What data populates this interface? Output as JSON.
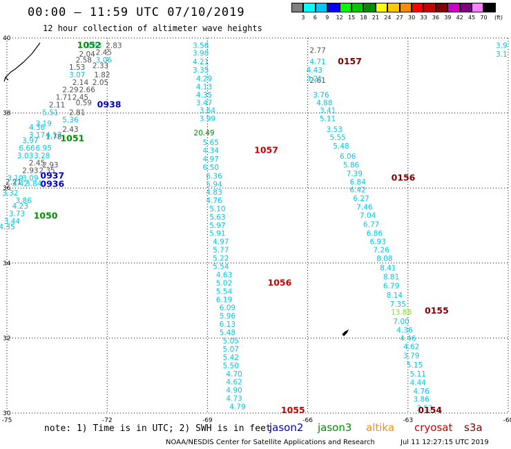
{
  "header": {
    "title": "00:00 – 11:59 UTC 07/10/2019",
    "subtitle": "12 hour collection of altimeter wave heights"
  },
  "footer": {
    "note": "note: 1) Time is in UTC; 2) SWH is in feet",
    "credit": "NOAA/NESDIS Center for Satellite Applications and Research",
    "timestamp": "Jul 11 12:27:15 UTC 2019"
  },
  "colorbar": {
    "unit": "(ft)",
    "colors": [
      "#808080",
      "#00ffff",
      "#00c8ff",
      "#0000ff",
      "#00ff00",
      "#00c800",
      "#008c00",
      "#ffff00",
      "#ffc800",
      "#ff8c00",
      "#ff0000",
      "#c80000",
      "#800000",
      "#c800c8",
      "#800080",
      "#ff80ff",
      "#000000"
    ],
    "labels": [
      "3",
      "6",
      "9",
      "12",
      "15",
      "18",
      "21",
      "24",
      "27",
      "30",
      "33",
      "36",
      "39",
      "42",
      "45",
      "70"
    ]
  },
  "legend": [
    {
      "name": "jason2",
      "color": "#0000c8"
    },
    {
      "name": "jason3",
      "color": "#008c00"
    },
    {
      "name": "altika",
      "color": "#ff8c00"
    },
    {
      "name": "cryosat",
      "color": "#c80000"
    },
    {
      "name": "s3a",
      "color": "#800000"
    }
  ],
  "chart_data": {
    "type": "scatter",
    "title": "00:00 – 11:59 UTC 07/10/2019",
    "subtitle": "12 hour collection of altimeter wave heights",
    "xlim": [
      -75,
      -60
    ],
    "ylim": [
      30,
      40
    ],
    "x_ticks": [
      "-75",
      "-72",
      "-69",
      "-66",
      "-63",
      "-60"
    ],
    "y_ticks": [
      "30",
      "32",
      "34",
      "36",
      "38",
      "40"
    ],
    "grid": true,
    "pass_labels": [
      {
        "text": "1052",
        "lon": -72.9,
        "lat": 39.73,
        "color": "#008c00"
      },
      {
        "text": "0938",
        "lon": -72.3,
        "lat": 38.15,
        "color": "#0000c8"
      },
      {
        "text": "1051",
        "lon": -73.4,
        "lat": 37.25,
        "color": "#008c00"
      },
      {
        "text": "0937",
        "lon": -74.0,
        "lat": 36.25,
        "color": "#0000c8"
      },
      {
        "text": "0936",
        "lon": -74.0,
        "lat": 36.03,
        "color": "#0000c8"
      },
      {
        "text": "1050",
        "lon": -74.2,
        "lat": 35.18,
        "color": "#008c00"
      },
      {
        "text": "1057",
        "lon": -67.6,
        "lat": 36.93,
        "color": "#c80000"
      },
      {
        "text": "1056",
        "lon": -67.2,
        "lat": 33.4,
        "color": "#c80000"
      },
      {
        "text": "1055",
        "lon": -66.8,
        "lat": 30.0,
        "color": "#c80000"
      },
      {
        "text": "0157",
        "lon": -65.1,
        "lat": 39.3,
        "color": "#800000"
      },
      {
        "text": "0156",
        "lon": -63.5,
        "lat": 36.2,
        "color": "#800000"
      },
      {
        "text": "0155",
        "lon": -62.5,
        "lat": 32.65,
        "color": "#800000"
      },
      {
        "text": "0154",
        "lon": -62.7,
        "lat": 30.0,
        "color": "#800000"
      }
    ],
    "series": [
      {
        "name": "grey track",
        "color": "#505050",
        "points": [
          {
            "lon": -71.8,
            "lat": 39.73,
            "v": "2.83"
          },
          {
            "lon": -72.1,
            "lat": 39.55,
            "v": "2.45"
          },
          {
            "lon": -72.6,
            "lat": 39.5,
            "v": "2.04"
          },
          {
            "lon": -72.7,
            "lat": 39.35,
            "v": "2.58"
          },
          {
            "lon": -72.2,
            "lat": 39.2,
            "v": "2.33"
          },
          {
            "lon": -72.9,
            "lat": 39.15,
            "v": "1.53"
          },
          {
            "lon": -72.15,
            "lat": 38.95,
            "v": "1.82"
          },
          {
            "lon": -72.8,
            "lat": 38.75,
            "v": "2.14"
          },
          {
            "lon": -72.2,
            "lat": 38.75,
            "v": "2.05"
          },
          {
            "lon": -73.1,
            "lat": 38.55,
            "v": "2.29"
          },
          {
            "lon": -72.6,
            "lat": 38.55,
            "v": "2.66"
          },
          {
            "lon": -73.3,
            "lat": 38.35,
            "v": "1.71"
          },
          {
            "lon": -72.8,
            "lat": 38.35,
            "v": "2.45"
          },
          {
            "lon": -73.5,
            "lat": 38.15,
            "v": "2.11"
          },
          {
            "lon": -72.7,
            "lat": 38.2,
            "v": "0.59"
          },
          {
            "lon": -72.9,
            "lat": 37.95,
            "v": "2.81"
          },
          {
            "lon": -73.1,
            "lat": 37.5,
            "v": "2.43"
          },
          {
            "lon": -73.6,
            "lat": 37.3,
            "v": "1.78"
          },
          {
            "lon": -74.1,
            "lat": 36.6,
            "v": "2.45"
          },
          {
            "lon": -73.7,
            "lat": 36.55,
            "v": "2.93"
          },
          {
            "lon": -74.3,
            "lat": 36.4,
            "v": "2.93"
          },
          {
            "lon": -73.8,
            "lat": 36.4,
            "v": "2.35"
          },
          {
            "lon": -74.8,
            "lat": 36.1,
            "v": "2.21"
          },
          {
            "lon": -65.7,
            "lat": 39.6,
            "v": "2.77"
          },
          {
            "lon": -65.7,
            "lat": 38.8,
            "v": "2.61"
          }
        ]
      },
      {
        "name": "cyan track",
        "color": "#00c8e6",
        "points": [
          {
            "lon": -72.4,
            "lat": 39.73,
            "v": "3.83"
          },
          {
            "lon": -72.1,
            "lat": 39.35,
            "v": "3.06"
          },
          {
            "lon": -72.9,
            "lat": 38.95,
            "v": "3.07"
          },
          {
            "lon": -73.7,
            "lat": 37.95,
            "v": "5.51"
          },
          {
            "lon": -73.1,
            "lat": 37.75,
            "v": "5.36"
          },
          {
            "lon": -73.9,
            "lat": 37.65,
            "v": "3.19"
          },
          {
            "lon": -74.1,
            "lat": 37.55,
            "v": "4.36"
          },
          {
            "lon": -74.1,
            "lat": 37.35,
            "v": "3.17"
          },
          {
            "lon": -73.6,
            "lat": 37.35,
            "v": "4.17"
          },
          {
            "lon": -74.3,
            "lat": 37.2,
            "v": "3.97"
          },
          {
            "lon": -74.4,
            "lat": 37.0,
            "v": "6.66"
          },
          {
            "lon": -73.9,
            "lat": 37.0,
            "v": "6.95"
          },
          {
            "lon": -74.45,
            "lat": 36.8,
            "v": "3.03"
          },
          {
            "lon": -73.95,
            "lat": 36.8,
            "v": "3.28"
          },
          {
            "lon": -74.3,
            "lat": 36.2,
            "v": "3.09"
          },
          {
            "lon": -74.75,
            "lat": 36.2,
            "v": "3.19"
          },
          {
            "lon": -74.6,
            "lat": 36.05,
            "v": "3.42"
          },
          {
            "lon": -74.2,
            "lat": 36.05,
            "v": "3.84"
          },
          {
            "lon": -74.9,
            "lat": 35.8,
            "v": "3.32"
          },
          {
            "lon": -74.5,
            "lat": 35.6,
            "v": "3.86"
          },
          {
            "lon": -74.6,
            "lat": 35.45,
            "v": "4.23"
          },
          {
            "lon": -74.7,
            "lat": 35.25,
            "v": "3.73"
          },
          {
            "lon": -74.85,
            "lat": 35.05,
            "v": "3.44"
          },
          {
            "lon": -75.0,
            "lat": 34.9,
            "v": "4.35"
          },
          {
            "lon": -69.2,
            "lat": 39.73,
            "v": "3.56"
          },
          {
            "lon": -69.2,
            "lat": 39.53,
            "v": "3.98"
          },
          {
            "lon": -69.2,
            "lat": 39.3,
            "v": "4.21"
          },
          {
            "lon": -69.2,
            "lat": 39.08,
            "v": "3.35"
          },
          {
            "lon": -69.1,
            "lat": 38.85,
            "v": "4.29"
          },
          {
            "lon": -69.1,
            "lat": 38.63,
            "v": "4.13"
          },
          {
            "lon": -69.1,
            "lat": 38.42,
            "v": "4.35"
          },
          {
            "lon": -69.1,
            "lat": 38.2,
            "v": "3.47"
          },
          {
            "lon": -69.0,
            "lat": 38.0,
            "v": "3.64"
          },
          {
            "lon": -69.0,
            "lat": 37.78,
            "v": "3.99"
          },
          {
            "lon": -68.9,
            "lat": 37.15,
            "v": "5.65"
          },
          {
            "lon": -68.9,
            "lat": 36.93,
            "v": "4.34"
          },
          {
            "lon": -68.9,
            "lat": 36.7,
            "v": "4.97"
          },
          {
            "lon": -68.9,
            "lat": 36.48,
            "v": "6.50"
          },
          {
            "lon": -68.8,
            "lat": 36.25,
            "v": "6.36"
          },
          {
            "lon": -68.8,
            "lat": 36.03,
            "v": "5.94"
          },
          {
            "lon": -68.8,
            "lat": 35.82,
            "v": "4.83"
          },
          {
            "lon": -68.8,
            "lat": 35.6,
            "v": "4.76"
          },
          {
            "lon": -68.7,
            "lat": 35.38,
            "v": "5.10"
          },
          {
            "lon": -68.7,
            "lat": 35.16,
            "v": "5.63"
          },
          {
            "lon": -68.7,
            "lat": 34.94,
            "v": "5.97"
          },
          {
            "lon": -68.7,
            "lat": 34.72,
            "v": "5.91"
          },
          {
            "lon": -68.6,
            "lat": 34.5,
            "v": "4.97"
          },
          {
            "lon": -68.6,
            "lat": 34.28,
            "v": "5.77"
          },
          {
            "lon": -68.6,
            "lat": 34.06,
            "v": "5.22"
          },
          {
            "lon": -68.6,
            "lat": 33.84,
            "v": "5.54"
          },
          {
            "lon": -68.5,
            "lat": 33.62,
            "v": "4.63"
          },
          {
            "lon": -68.5,
            "lat": 33.4,
            "v": "5.02"
          },
          {
            "lon": -68.5,
            "lat": 33.18,
            "v": "5.54"
          },
          {
            "lon": -68.5,
            "lat": 32.96,
            "v": "6.19"
          },
          {
            "lon": -68.4,
            "lat": 32.74,
            "v": "6.09"
          },
          {
            "lon": -68.4,
            "lat": 32.52,
            "v": "5.96"
          },
          {
            "lon": -68.4,
            "lat": 32.3,
            "v": "6.13"
          },
          {
            "lon": -68.4,
            "lat": 32.08,
            "v": "5.48"
          },
          {
            "lon": -68.3,
            "lat": 31.86,
            "v": "5.05"
          },
          {
            "lon": -68.3,
            "lat": 31.64,
            "v": "5.07"
          },
          {
            "lon": -68.3,
            "lat": 31.42,
            "v": "5.42"
          },
          {
            "lon": -68.3,
            "lat": 31.2,
            "v": "5.50"
          },
          {
            "lon": -68.2,
            "lat": 30.98,
            "v": "4.70"
          },
          {
            "lon": -68.2,
            "lat": 30.76,
            "v": "4.62"
          },
          {
            "lon": -68.2,
            "lat": 30.54,
            "v": "4.90"
          },
          {
            "lon": -68.2,
            "lat": 30.32,
            "v": "4.73"
          },
          {
            "lon": -68.1,
            "lat": 30.1,
            "v": "4.79"
          },
          {
            "lon": -65.7,
            "lat": 39.3,
            "v": "4.71"
          },
          {
            "lon": -65.8,
            "lat": 39.08,
            "v": "4.43"
          },
          {
            "lon": -65.8,
            "lat": 38.85,
            "v": "3.21"
          },
          {
            "lon": -65.6,
            "lat": 38.42,
            "v": "3.76"
          },
          {
            "lon": -65.5,
            "lat": 38.2,
            "v": "4.88"
          },
          {
            "lon": -65.4,
            "lat": 38.0,
            "v": "3.41"
          },
          {
            "lon": -65.4,
            "lat": 37.78,
            "v": "5.11"
          },
          {
            "lon": -65.2,
            "lat": 37.5,
            "v": "3.53"
          },
          {
            "lon": -65.1,
            "lat": 37.28,
            "v": "5.55"
          },
          {
            "lon": -65.0,
            "lat": 37.05,
            "v": "5.48"
          },
          {
            "lon": -64.8,
            "lat": 36.78,
            "v": "6.06"
          },
          {
            "lon": -64.7,
            "lat": 36.55,
            "v": "5.86"
          },
          {
            "lon": -64.6,
            "lat": 36.32,
            "v": "7.39"
          },
          {
            "lon": -64.5,
            "lat": 36.1,
            "v": "6.84"
          },
          {
            "lon": -64.5,
            "lat": 35.88,
            "v": "6.42"
          },
          {
            "lon": -64.4,
            "lat": 35.65,
            "v": "6.27"
          },
          {
            "lon": -64.3,
            "lat": 35.42,
            "v": "7.46"
          },
          {
            "lon": -64.2,
            "lat": 35.2,
            "v": "7.04"
          },
          {
            "lon": -64.1,
            "lat": 34.96,
            "v": "6.77"
          },
          {
            "lon": -64.0,
            "lat": 34.72,
            "v": "6.86"
          },
          {
            "lon": -63.9,
            "lat": 34.5,
            "v": "6.93"
          },
          {
            "lon": -63.8,
            "lat": 34.28,
            "v": "7.26"
          },
          {
            "lon": -63.7,
            "lat": 34.05,
            "v": "8.08"
          },
          {
            "lon": -63.6,
            "lat": 33.8,
            "v": "8.41"
          },
          {
            "lon": -63.5,
            "lat": 33.56,
            "v": "8.81"
          },
          {
            "lon": -63.5,
            "lat": 33.32,
            "v": "6.79"
          },
          {
            "lon": -63.4,
            "lat": 33.08,
            "v": "8.14"
          },
          {
            "lon": -63.3,
            "lat": 32.84,
            "v": "7.35"
          },
          {
            "lon": -63.2,
            "lat": 32.38,
            "v": "7.00"
          },
          {
            "lon": -63.1,
            "lat": 32.15,
            "v": "4.36"
          },
          {
            "lon": -63.0,
            "lat": 31.92,
            "v": "4.46"
          },
          {
            "lon": -62.9,
            "lat": 31.7,
            "v": "4.62"
          },
          {
            "lon": -62.9,
            "lat": 31.46,
            "v": "3.79"
          },
          {
            "lon": -62.8,
            "lat": 31.22,
            "v": "5.15"
          },
          {
            "lon": -62.7,
            "lat": 30.98,
            "v": "5.11"
          },
          {
            "lon": -62.7,
            "lat": 30.75,
            "v": "4.44"
          },
          {
            "lon": -62.6,
            "lat": 30.52,
            "v": "4.76"
          },
          {
            "lon": -62.6,
            "lat": 30.3,
            "v": "3.86"
          },
          {
            "lon": -62.5,
            "lat": 30.06,
            "v": "3.53"
          },
          {
            "lon": -60.2,
            "lat": 39.73,
            "v": "3.9"
          },
          {
            "lon": -60.2,
            "lat": 39.5,
            "v": "3.1"
          }
        ]
      },
      {
        "name": "green track",
        "color": "#008c00",
        "points": [
          {
            "lon": -69.1,
            "lat": 37.4,
            "v": "20.49"
          }
        ]
      },
      {
        "name": "yellow-green",
        "color": "#80e020",
        "points": [
          {
            "lon": -63.2,
            "lat": 32.62,
            "v": "13.86"
          }
        ]
      }
    ]
  }
}
